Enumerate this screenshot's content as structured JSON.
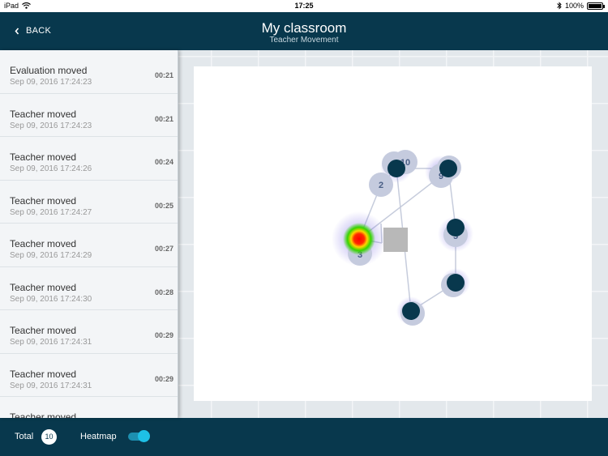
{
  "status_bar": {
    "device": "iPad",
    "time": "17:25",
    "battery": "100%"
  },
  "nav": {
    "back_label": "BACK",
    "title": "My classroom",
    "subtitle": "Teacher Movement"
  },
  "events": [
    {
      "title": "Evaluation moved",
      "date": "Sep 09, 2016 17:24:23",
      "duration": "00:21"
    },
    {
      "title": "Teacher moved",
      "date": "Sep 09, 2016 17:24:23",
      "duration": "00:21"
    },
    {
      "title": "Teacher moved",
      "date": "Sep 09, 2016 17:24:26",
      "duration": "00:24"
    },
    {
      "title": "Teacher moved",
      "date": "Sep 09, 2016 17:24:27",
      "duration": "00:25"
    },
    {
      "title": "Teacher moved",
      "date": "Sep 09, 2016 17:24:29",
      "duration": "00:27"
    },
    {
      "title": "Teacher moved",
      "date": "Sep 09, 2016 17:24:30",
      "duration": "00:28"
    },
    {
      "title": "Teacher moved",
      "date": "Sep 09, 2016 17:24:31",
      "duration": "00:29"
    },
    {
      "title": "Teacher moved",
      "date": "Sep 09, 2016 17:24:31",
      "duration": "00:29"
    },
    {
      "title": "Teacher moved",
      "date": "",
      "duration": ""
    }
  ],
  "map": {
    "point_labels": [
      "2",
      "10",
      "9",
      "3",
      "5"
    ]
  },
  "footer": {
    "total_label": "Total",
    "total_count": "10",
    "heatmap_label": "Heatmap",
    "heatmap_on": true
  },
  "colors": {
    "nav_bg": "#08384d",
    "accent": "#1ec0e6",
    "marker": "#08384d"
  },
  "icons": {
    "back": "chevron-left-icon",
    "wifi": "wifi-icon",
    "bluetooth": "bluetooth-icon",
    "battery": "battery-icon"
  }
}
